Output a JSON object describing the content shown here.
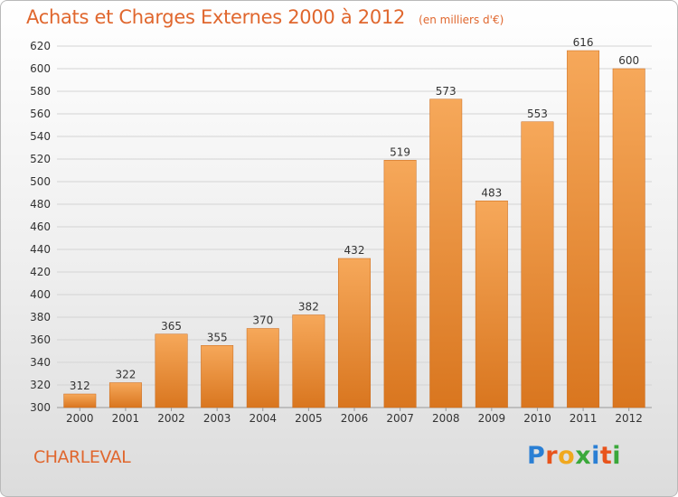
{
  "header": {
    "title": "Achats et Charges Externes 2000 à 2012",
    "subtitle": "(en milliers d'€)"
  },
  "footer": {
    "city": "CHARLEVAL",
    "brand": [
      "P",
      "r",
      "o",
      "x",
      "i",
      "t",
      "i"
    ],
    "brand_colors": [
      "#2a7fd4",
      "#e8541c",
      "#f0a81e",
      "#3aa83a",
      "#2a7fd4",
      "#e8541c",
      "#3aa83a"
    ]
  },
  "chart_data": {
    "type": "bar",
    "categories": [
      "2000",
      "2001",
      "2002",
      "2003",
      "2004",
      "2005",
      "2006",
      "2007",
      "2008",
      "2009",
      "2010",
      "2011",
      "2012"
    ],
    "values": [
      312,
      322,
      365,
      355,
      370,
      382,
      432,
      519,
      573,
      483,
      553,
      616,
      600
    ],
    "title": "Achats et Charges Externes 2000 à 2012",
    "subtitle": "(en milliers d'€)",
    "xlabel": "",
    "ylabel": "",
    "ylim": [
      300,
      620
    ],
    "yticks": [
      300,
      320,
      340,
      360,
      380,
      400,
      420,
      440,
      460,
      480,
      500,
      520,
      540,
      560,
      580,
      600,
      620
    ],
    "grid": true,
    "colors": {
      "bar_light": "#f6a85a",
      "bar_dark": "#d9761f",
      "grid": "#d4d4d4",
      "axis_text": "#333333"
    }
  }
}
